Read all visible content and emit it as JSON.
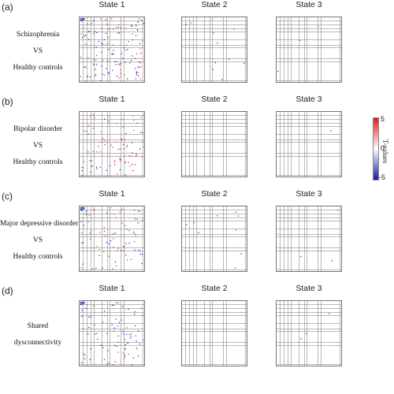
{
  "chart_data": {
    "type": "heatmap",
    "colorbar": {
      "title": "T-values",
      "ticks": [
        "5",
        "0",
        "-5"
      ],
      "range": [
        -5,
        5
      ],
      "colors": {
        "high": "#e41a1c",
        "mid": "#ffffff",
        "low": "#1a1aa8"
      }
    },
    "state_titles": [
      "State 1",
      "State 2",
      "State 3"
    ],
    "rows": [
      {
        "panel": "(a)",
        "label_lines": [
          "Schizophrenia",
          "VS",
          "Healthy controls"
        ],
        "states": [
          {
            "state": "State 1",
            "n_sig": 130,
            "pos_frac": 0.4
          },
          {
            "state": "State 2",
            "n_sig": 10,
            "pos_frac": 0.3
          },
          {
            "state": "State 3",
            "n_sig": 3,
            "pos_frac": 0.7
          }
        ]
      },
      {
        "panel": "(b)",
        "label_lines": [
          "Bipolar disorder",
          "VS",
          "Healthy controls"
        ],
        "states": [
          {
            "state": "State 1",
            "n_sig": 90,
            "pos_frac": 0.6
          },
          {
            "state": "State 2",
            "n_sig": 0,
            "pos_frac": 0
          },
          {
            "state": "State 3",
            "n_sig": 1,
            "pos_frac": 0
          }
        ]
      },
      {
        "panel": "(c)",
        "label_lines": [
          "Major depressive disorder",
          "VS",
          "Healthy controls"
        ],
        "states": [
          {
            "state": "State 1",
            "n_sig": 80,
            "pos_frac": 0.45
          },
          {
            "state": "State 2",
            "n_sig": 9,
            "pos_frac": 0.2
          },
          {
            "state": "State 3",
            "n_sig": 3,
            "pos_frac": 0.3
          }
        ]
      },
      {
        "panel": "(d)",
        "label_lines": [
          "Shared",
          "dysconnectivity"
        ],
        "states": [
          {
            "state": "State 1",
            "n_sig": 85,
            "pos_frac": 0.3
          },
          {
            "state": "State 2",
            "n_sig": 0,
            "pos_frac": 0
          },
          {
            "state": "State 3",
            "n_sig": 3,
            "pos_frac": 0.3
          }
        ]
      }
    ]
  }
}
